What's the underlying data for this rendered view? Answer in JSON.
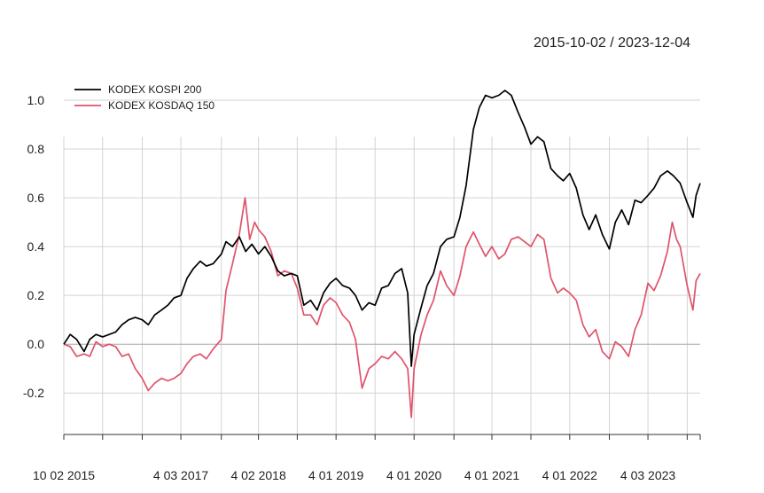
{
  "header": {
    "date_range": "2015-10-02 / 2023-12-04"
  },
  "chart_data": {
    "type": "line",
    "title": "",
    "xlabel": "",
    "ylabel": "",
    "xlim": [
      "2015-10-02",
      "2023-12-04"
    ],
    "ylim": [
      -0.37,
      1.12
    ],
    "grid": true,
    "legend_position": "top-left",
    "y_ticks": [
      -0.2,
      0.0,
      0.2,
      0.4,
      0.6,
      0.8,
      1.0
    ],
    "y_tick_labels": [
      "-0.2",
      "0.0",
      "0.2",
      "0.4",
      "0.6",
      "0.8",
      "1.0"
    ],
    "x_tick_dates": [
      "2015-10-02",
      "2016-04-01",
      "2016-10-04",
      "2017-04-03",
      "2017-10-10",
      "2018-04-02",
      "2018-10-01",
      "2019-04-01",
      "2019-10-01",
      "2020-04-01",
      "2020-10-05",
      "2021-04-01",
      "2021-10-01",
      "2022-04-01",
      "2022-10-04",
      "2023-04-03",
      "2023-10-04",
      "2023-12-04"
    ],
    "x_tick_labels": [
      {
        "date": "2015-10-02",
        "label": "10 02 2015"
      },
      {
        "date": "2017-04-03",
        "label": "4 03 2017"
      },
      {
        "date": "2018-04-02",
        "label": "4 02 2018"
      },
      {
        "date": "2019-04-01",
        "label": "4 01 2019"
      },
      {
        "date": "2020-04-01",
        "label": "4 01 2020"
      },
      {
        "date": "2021-04-01",
        "label": "4 01 2021"
      },
      {
        "date": "2022-04-01",
        "label": "4 01 2022"
      },
      {
        "date": "2023-04-03",
        "label": "4 03 2023"
      }
    ],
    "x_grid_dates": [
      "2015-10-02",
      "2016-04-01",
      "2016-10-04",
      "2017-04-03",
      "2017-10-10",
      "2018-04-02",
      "2018-10-01",
      "2019-04-01",
      "2019-10-01",
      "2020-04-01",
      "2020-10-05",
      "2021-04-01",
      "2021-10-01",
      "2022-04-01",
      "2022-10-04",
      "2023-04-03",
      "2023-10-04"
    ],
    "series": [
      {
        "name": "KODEX KOSPI 200",
        "color": "#000000",
        "points": [
          [
            "2015-10-02",
            0.0
          ],
          [
            "2015-11-01",
            0.04
          ],
          [
            "2015-12-01",
            0.02
          ],
          [
            "2016-01-05",
            -0.03
          ],
          [
            "2016-02-01",
            0.02
          ],
          [
            "2016-03-01",
            0.04
          ],
          [
            "2016-04-01",
            0.03
          ],
          [
            "2016-05-02",
            0.04
          ],
          [
            "2016-06-01",
            0.05
          ],
          [
            "2016-07-01",
            0.08
          ],
          [
            "2016-08-01",
            0.1
          ],
          [
            "2016-09-01",
            0.11
          ],
          [
            "2016-10-04",
            0.1
          ],
          [
            "2016-11-01",
            0.08
          ],
          [
            "2016-12-01",
            0.12
          ],
          [
            "2017-01-02",
            0.14
          ],
          [
            "2017-02-01",
            0.16
          ],
          [
            "2017-03-02",
            0.19
          ],
          [
            "2017-04-03",
            0.2
          ],
          [
            "2017-05-02",
            0.27
          ],
          [
            "2017-06-01",
            0.31
          ],
          [
            "2017-07-03",
            0.34
          ],
          [
            "2017-08-01",
            0.32
          ],
          [
            "2017-09-01",
            0.33
          ],
          [
            "2017-10-10",
            0.37
          ],
          [
            "2017-11-01",
            0.42
          ],
          [
            "2017-12-01",
            0.4
          ],
          [
            "2018-01-02",
            0.44
          ],
          [
            "2018-02-01",
            0.38
          ],
          [
            "2018-03-02",
            0.41
          ],
          [
            "2018-04-02",
            0.37
          ],
          [
            "2018-05-02",
            0.4
          ],
          [
            "2018-06-01",
            0.36
          ],
          [
            "2018-07-02",
            0.3
          ],
          [
            "2018-08-01",
            0.28
          ],
          [
            "2018-09-03",
            0.29
          ],
          [
            "2018-10-01",
            0.28
          ],
          [
            "2018-11-01",
            0.16
          ],
          [
            "2018-12-03",
            0.18
          ],
          [
            "2019-01-02",
            0.14
          ],
          [
            "2019-02-01",
            0.21
          ],
          [
            "2019-03-04",
            0.25
          ],
          [
            "2019-04-01",
            0.27
          ],
          [
            "2019-05-02",
            0.24
          ],
          [
            "2019-06-03",
            0.23
          ],
          [
            "2019-07-01",
            0.2
          ],
          [
            "2019-08-01",
            0.14
          ],
          [
            "2019-09-02",
            0.17
          ],
          [
            "2019-10-01",
            0.16
          ],
          [
            "2019-11-01",
            0.23
          ],
          [
            "2019-12-02",
            0.24
          ],
          [
            "2020-01-02",
            0.29
          ],
          [
            "2020-02-03",
            0.31
          ],
          [
            "2020-03-02",
            0.21
          ],
          [
            "2020-03-19",
            -0.09
          ],
          [
            "2020-04-01",
            0.04
          ],
          [
            "2020-05-04",
            0.15
          ],
          [
            "2020-06-01",
            0.24
          ],
          [
            "2020-07-01",
            0.29
          ],
          [
            "2020-08-03",
            0.4
          ],
          [
            "2020-09-01",
            0.43
          ],
          [
            "2020-10-05",
            0.44
          ],
          [
            "2020-11-02",
            0.52
          ],
          [
            "2020-12-01",
            0.65
          ],
          [
            "2021-01-04",
            0.88
          ],
          [
            "2021-02-01",
            0.97
          ],
          [
            "2021-03-02",
            1.02
          ],
          [
            "2021-04-01",
            1.01
          ],
          [
            "2021-05-03",
            1.02
          ],
          [
            "2021-06-01",
            1.04
          ],
          [
            "2021-07-01",
            1.02
          ],
          [
            "2021-08-02",
            0.95
          ],
          [
            "2021-09-01",
            0.89
          ],
          [
            "2021-10-01",
            0.82
          ],
          [
            "2021-11-01",
            0.85
          ],
          [
            "2021-12-01",
            0.83
          ],
          [
            "2022-01-03",
            0.72
          ],
          [
            "2022-02-03",
            0.69
          ],
          [
            "2022-03-02",
            0.67
          ],
          [
            "2022-04-01",
            0.7
          ],
          [
            "2022-05-02",
            0.64
          ],
          [
            "2022-06-02",
            0.53
          ],
          [
            "2022-07-01",
            0.47
          ],
          [
            "2022-08-01",
            0.53
          ],
          [
            "2022-09-01",
            0.45
          ],
          [
            "2022-10-04",
            0.39
          ],
          [
            "2022-11-01",
            0.5
          ],
          [
            "2022-12-01",
            0.55
          ],
          [
            "2023-01-02",
            0.49
          ],
          [
            "2023-02-01",
            0.59
          ],
          [
            "2023-03-02",
            0.58
          ],
          [
            "2023-04-03",
            0.61
          ],
          [
            "2023-05-02",
            0.64
          ],
          [
            "2023-06-01",
            0.69
          ],
          [
            "2023-07-03",
            0.71
          ],
          [
            "2023-08-01",
            0.69
          ],
          [
            "2023-09-01",
            0.66
          ],
          [
            "2023-10-04",
            0.58
          ],
          [
            "2023-10-31",
            0.52
          ],
          [
            "2023-11-15",
            0.61
          ],
          [
            "2023-12-04",
            0.66
          ]
        ]
      },
      {
        "name": "KODEX KOSDAQ 150",
        "color": "#df536b",
        "points": [
          [
            "2015-10-02",
            0.0
          ],
          [
            "2015-11-01",
            -0.01
          ],
          [
            "2015-12-01",
            -0.05
          ],
          [
            "2016-01-05",
            -0.04
          ],
          [
            "2016-02-01",
            -0.05
          ],
          [
            "2016-03-01",
            0.01
          ],
          [
            "2016-04-01",
            -0.01
          ],
          [
            "2016-05-02",
            0.0
          ],
          [
            "2016-06-01",
            -0.01
          ],
          [
            "2016-07-01",
            -0.05
          ],
          [
            "2016-08-01",
            -0.04
          ],
          [
            "2016-09-01",
            -0.1
          ],
          [
            "2016-10-04",
            -0.14
          ],
          [
            "2016-11-01",
            -0.19
          ],
          [
            "2016-12-01",
            -0.16
          ],
          [
            "2017-01-02",
            -0.14
          ],
          [
            "2017-02-01",
            -0.15
          ],
          [
            "2017-03-02",
            -0.14
          ],
          [
            "2017-04-03",
            -0.12
          ],
          [
            "2017-05-02",
            -0.08
          ],
          [
            "2017-06-01",
            -0.05
          ],
          [
            "2017-07-03",
            -0.04
          ],
          [
            "2017-08-01",
            -0.06
          ],
          [
            "2017-09-01",
            -0.02
          ],
          [
            "2017-10-10",
            0.02
          ],
          [
            "2017-11-01",
            0.22
          ],
          [
            "2017-12-01",
            0.33
          ],
          [
            "2018-01-02",
            0.45
          ],
          [
            "2018-01-29",
            0.6
          ],
          [
            "2018-02-20",
            0.43
          ],
          [
            "2018-03-15",
            0.5
          ],
          [
            "2018-04-02",
            0.47
          ],
          [
            "2018-05-02",
            0.44
          ],
          [
            "2018-06-01",
            0.38
          ],
          [
            "2018-07-02",
            0.28
          ],
          [
            "2018-08-01",
            0.3
          ],
          [
            "2018-09-03",
            0.29
          ],
          [
            "2018-10-01",
            0.23
          ],
          [
            "2018-11-01",
            0.12
          ],
          [
            "2018-12-03",
            0.12
          ],
          [
            "2019-01-02",
            0.08
          ],
          [
            "2019-02-01",
            0.16
          ],
          [
            "2019-03-04",
            0.19
          ],
          [
            "2019-04-01",
            0.17
          ],
          [
            "2019-05-02",
            0.12
          ],
          [
            "2019-06-03",
            0.09
          ],
          [
            "2019-07-01",
            0.02
          ],
          [
            "2019-08-01",
            -0.18
          ],
          [
            "2019-09-02",
            -0.1
          ],
          [
            "2019-10-01",
            -0.08
          ],
          [
            "2019-11-01",
            -0.05
          ],
          [
            "2019-12-02",
            -0.06
          ],
          [
            "2020-01-02",
            -0.03
          ],
          [
            "2020-02-03",
            -0.06
          ],
          [
            "2020-03-02",
            -0.1
          ],
          [
            "2020-03-19",
            -0.3
          ],
          [
            "2020-04-01",
            -0.1
          ],
          [
            "2020-05-04",
            0.04
          ],
          [
            "2020-06-01",
            0.12
          ],
          [
            "2020-07-01",
            0.18
          ],
          [
            "2020-08-03",
            0.3
          ],
          [
            "2020-09-01",
            0.24
          ],
          [
            "2020-10-05",
            0.2
          ],
          [
            "2020-11-02",
            0.28
          ],
          [
            "2020-12-01",
            0.4
          ],
          [
            "2021-01-04",
            0.46
          ],
          [
            "2021-02-01",
            0.41
          ],
          [
            "2021-03-02",
            0.36
          ],
          [
            "2021-04-01",
            0.4
          ],
          [
            "2021-05-03",
            0.35
          ],
          [
            "2021-06-01",
            0.37
          ],
          [
            "2021-07-01",
            0.43
          ],
          [
            "2021-08-02",
            0.44
          ],
          [
            "2021-09-01",
            0.42
          ],
          [
            "2021-10-01",
            0.4
          ],
          [
            "2021-11-01",
            0.45
          ],
          [
            "2021-12-01",
            0.43
          ],
          [
            "2022-01-03",
            0.27
          ],
          [
            "2022-02-03",
            0.21
          ],
          [
            "2022-03-02",
            0.23
          ],
          [
            "2022-04-01",
            0.21
          ],
          [
            "2022-05-02",
            0.18
          ],
          [
            "2022-06-02",
            0.08
          ],
          [
            "2022-07-01",
            0.03
          ],
          [
            "2022-08-01",
            0.06
          ],
          [
            "2022-09-01",
            -0.03
          ],
          [
            "2022-10-04",
            -0.06
          ],
          [
            "2022-11-01",
            0.01
          ],
          [
            "2022-12-01",
            -0.01
          ],
          [
            "2023-01-02",
            -0.05
          ],
          [
            "2023-02-01",
            0.06
          ],
          [
            "2023-03-02",
            0.12
          ],
          [
            "2023-04-03",
            0.25
          ],
          [
            "2023-05-02",
            0.22
          ],
          [
            "2023-06-01",
            0.28
          ],
          [
            "2023-07-03",
            0.38
          ],
          [
            "2023-07-26",
            0.5
          ],
          [
            "2023-08-15",
            0.43
          ],
          [
            "2023-09-01",
            0.4
          ],
          [
            "2023-10-04",
            0.24
          ],
          [
            "2023-10-31",
            0.14
          ],
          [
            "2023-11-15",
            0.26
          ],
          [
            "2023-12-04",
            0.29
          ]
        ]
      }
    ]
  }
}
